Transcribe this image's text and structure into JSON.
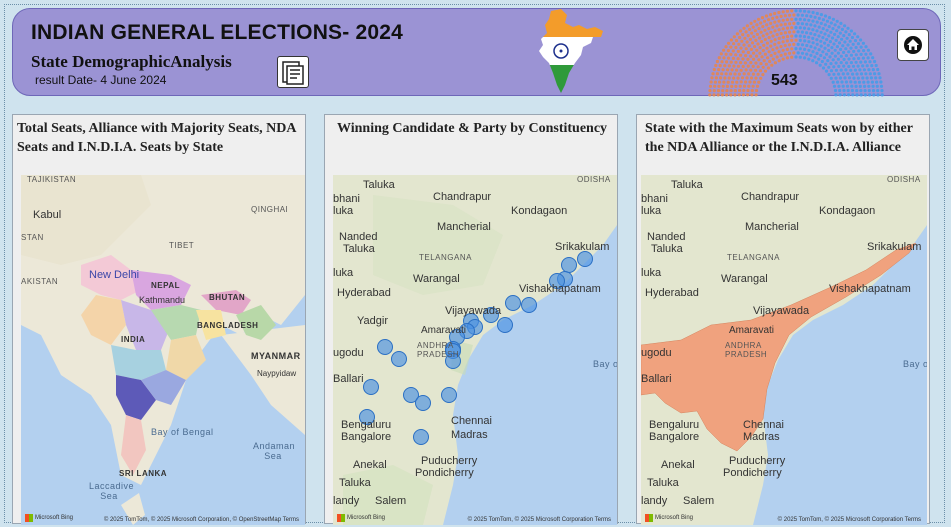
{
  "header": {
    "title": "INDIAN GENERAL ELECTIONS- 2024",
    "subtitle": "State DemographicAnalysis",
    "result_date": "result Date- 4 June 2024",
    "total_seats": "543"
  },
  "cards": [
    {
      "title": "Total Seats, Alliance with Majority Seats, NDA Seats and I.N.D.I.A. Seats by State",
      "labels": [
        "TAJIKISTAN",
        "Kabul",
        "STAN",
        "QINGHAI",
        "TIBET",
        "AKISTAN",
        "New Delhi",
        "NEPAL",
        "Kathmandu",
        "BHUTAN",
        "BANGLADESH",
        "INDIA",
        "MYANMAR",
        "Naypyidaw",
        "Bay of Bengal",
        "Andaman Sea",
        "SRI LANKA",
        "Laccadive Sea"
      ]
    },
    {
      "title": "Winning Candidate & Party by Constituency",
      "labels": [
        "Taluka",
        "Chandrapur",
        "ODISHA",
        "bhani",
        "luka",
        "Kondagaon",
        "Mancherial",
        "Nanded",
        "Taluka",
        "Srikakulam",
        "TELANGANA",
        "luka",
        "Warangal",
        "Hyderabad",
        "Vishakhapatnam",
        "Vijayawada",
        "Yadgir",
        "Amaravati",
        "ANDHRA PRADESH",
        "ugodu",
        "Bay of",
        "Ballari",
        "Bengaluru",
        "Bangalore",
        "Chennai",
        "Madras",
        "Anekal",
        "Puducherry",
        "Pondicherry",
        "Taluka",
        "landy",
        "Salem"
      ]
    },
    {
      "title": "State with the Maximum Seats won by either the NDA Alliance or the I.N.D.I.A. Alliance",
      "labels": [
        "Taluka",
        "Chandrapur",
        "ODISHA",
        "bhani",
        "luka",
        "Kondagaon",
        "Mancherial",
        "Nanded",
        "Taluka",
        "Srikakulam",
        "TELANGANA",
        "luka",
        "Warangal",
        "Hyderabad",
        "Vishakhapatnam",
        "Vijayawada",
        "Amaravati",
        "ANDHRA PRADESH",
        "ugodu",
        "Bay of",
        "Ballari",
        "Bengaluru",
        "Bangalore",
        "Chennai",
        "Madras",
        "Anekal",
        "Puducherry",
        "Pondicherry",
        "Taluka",
        "landy",
        "Salem"
      ]
    }
  ],
  "attribution": {
    "card1": "© 2025 TomTom, © 2025 Microsoft Corporation, © OpenStreetMap  Terms",
    "card2": "© 2025 TomTom, © 2025 Microsoft Corporation  Terms",
    "card3": "© 2025 TomTom, © 2025 Microsoft Corporation  Terms",
    "bing": "Microsoft Bing"
  },
  "colors": {
    "header_bg": "#9b93d4",
    "bubble": "#4a90e2",
    "highlight_state": "#f0a27e",
    "nda_seats": "#e0875a",
    "india_seats": "#4d9be6"
  }
}
